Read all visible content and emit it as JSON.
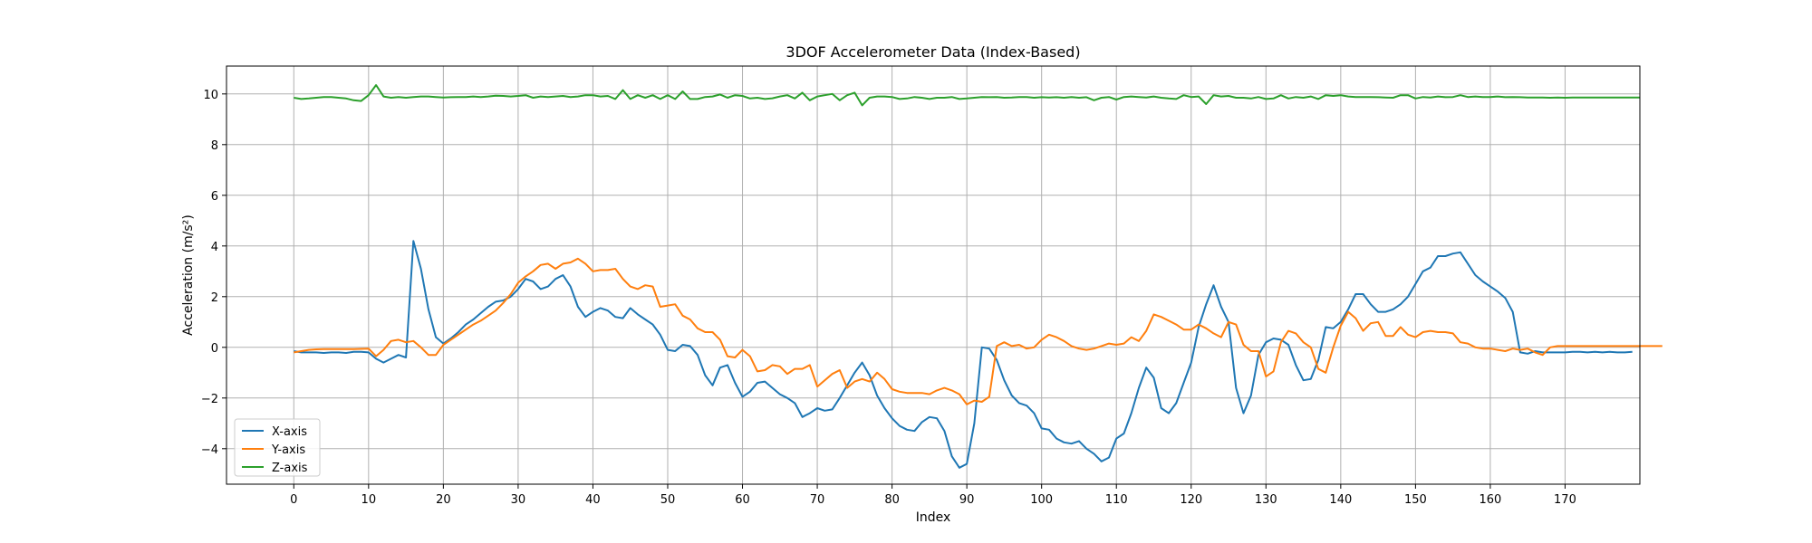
{
  "chart_data": {
    "type": "line",
    "title": "3DOF Accelerometer Data (Index-Based)",
    "xlabel": "Index",
    "ylabel": "Acceleration (m/s²)",
    "xlim": [
      -9,
      180
    ],
    "ylim": [
      -5.4,
      11.1
    ],
    "xticks": [
      0,
      10,
      20,
      30,
      40,
      50,
      60,
      70,
      80,
      90,
      100,
      110,
      120,
      130,
      140,
      150,
      160,
      170
    ],
    "yticks": [
      -4,
      -2,
      0,
      2,
      4,
      6,
      8,
      10
    ],
    "grid": true,
    "legend_position": "lower-left",
    "series": [
      {
        "name": "X-axis",
        "color": "#1f77b4",
        "values": [
          -0.15,
          -0.2,
          -0.2,
          -0.2,
          -0.22,
          -0.2,
          -0.2,
          -0.22,
          -0.18,
          -0.18,
          -0.2,
          -0.45,
          -0.6,
          -0.45,
          -0.3,
          -0.4,
          4.2,
          3.1,
          1.5,
          0.4,
          0.15,
          0.35,
          0.6,
          0.9,
          1.1,
          1.35,
          1.6,
          1.8,
          1.85,
          2.0,
          2.3,
          2.7,
          2.6,
          2.3,
          2.4,
          2.7,
          2.85,
          2.4,
          1.6,
          1.2,
          1.4,
          1.55,
          1.45,
          1.2,
          1.15,
          1.55,
          1.3,
          1.1,
          0.9,
          0.5,
          -0.1,
          -0.15,
          0.1,
          0.05,
          -0.3,
          -1.1,
          -1.5,
          -0.8,
          -0.7,
          -1.4,
          -1.95,
          -1.75,
          -1.4,
          -1.35,
          -1.6,
          -1.85,
          -2.0,
          -2.2,
          -2.75,
          -2.6,
          -2.4,
          -2.5,
          -2.45,
          -2.0,
          -1.5,
          -1.0,
          -0.6,
          -1.1,
          -1.9,
          -2.4,
          -2.8,
          -3.1,
          -3.25,
          -3.3,
          -2.95,
          -2.75,
          -2.8,
          -3.3,
          -4.3,
          -4.75,
          -4.6,
          -3.0,
          0.0,
          -0.05,
          -0.5,
          -1.3,
          -1.9,
          -2.2,
          -2.3,
          -2.6,
          -3.2,
          -3.25,
          -3.6,
          -3.75,
          -3.8,
          -3.7,
          -4.0,
          -4.2,
          -4.5,
          -4.35,
          -3.6,
          -3.4,
          -2.6,
          -1.6,
          -0.8,
          -1.2,
          -2.4,
          -2.6,
          -2.2,
          -1.4,
          -0.6,
          0.8,
          1.7,
          2.45,
          1.6,
          1.0,
          -1.6,
          -2.6,
          -1.9,
          -0.3,
          0.2,
          0.35,
          0.3,
          0.1,
          -0.7,
          -1.3,
          -1.25,
          -0.5,
          0.8,
          0.75,
          1.0,
          1.5,
          2.1,
          2.1,
          1.7,
          1.4,
          1.4,
          1.5,
          1.7,
          2.0,
          2.5,
          3.0,
          3.15,
          3.6,
          3.6,
          3.7,
          3.75,
          3.3,
          2.85,
          2.6,
          2.4,
          2.2,
          1.95,
          1.4,
          -0.2,
          -0.25,
          -0.15,
          -0.2,
          -0.2,
          -0.2,
          -0.2,
          -0.18,
          -0.18,
          -0.2,
          -0.18,
          -0.2,
          -0.18,
          -0.2,
          -0.2,
          -0.18
        ]
      },
      {
        "name": "Y-axis",
        "color": "#ff7f0e",
        "values": [
          -0.2,
          -0.15,
          -0.1,
          -0.08,
          -0.07,
          -0.07,
          -0.07,
          -0.07,
          -0.07,
          -0.06,
          -0.05,
          -0.35,
          -0.1,
          0.25,
          0.3,
          0.2,
          0.25,
          0.0,
          -0.3,
          -0.3,
          0.1,
          0.3,
          0.5,
          0.7,
          0.9,
          1.05,
          1.25,
          1.45,
          1.75,
          2.1,
          2.55,
          2.8,
          3.0,
          3.25,
          3.3,
          3.1,
          3.3,
          3.35,
          3.5,
          3.3,
          3.0,
          3.05,
          3.05,
          3.1,
          2.7,
          2.4,
          2.3,
          2.45,
          2.4,
          1.6,
          1.65,
          1.7,
          1.25,
          1.1,
          0.75,
          0.6,
          0.6,
          0.3,
          -0.35,
          -0.4,
          -0.1,
          -0.35,
          -0.95,
          -0.9,
          -0.7,
          -0.75,
          -1.05,
          -0.85,
          -0.85,
          -0.7,
          -1.55,
          -1.3,
          -1.05,
          -0.9,
          -1.6,
          -1.35,
          -1.25,
          -1.35,
          -1.0,
          -1.25,
          -1.65,
          -1.75,
          -1.8,
          -1.8,
          -1.8,
          -1.85,
          -1.7,
          -1.6,
          -1.7,
          -1.85,
          -2.25,
          -2.1,
          -2.15,
          -1.95,
          0.05,
          0.2,
          0.05,
          0.1,
          -0.05,
          0.0,
          0.3,
          0.5,
          0.4,
          0.25,
          0.05,
          -0.05,
          -0.1,
          -0.05,
          0.05,
          0.15,
          0.1,
          0.15,
          0.4,
          0.25,
          0.65,
          1.3,
          1.2,
          1.05,
          0.9,
          0.7,
          0.7,
          0.9,
          0.75,
          0.55,
          0.4,
          1.0,
          0.9,
          0.1,
          -0.15,
          -0.15,
          -1.15,
          -0.95,
          0.2,
          0.65,
          0.55,
          0.2,
          0.0,
          -0.85,
          -1.0,
          0.0,
          0.85,
          1.4,
          1.15,
          0.65,
          0.95,
          1.0,
          0.45,
          0.45,
          0.8,
          0.5,
          0.4,
          0.6,
          0.65,
          0.6,
          0.6,
          0.55,
          0.2,
          0.15,
          0.0,
          -0.05,
          -0.05,
          -0.1,
          -0.15,
          -0.05,
          -0.1,
          -0.05,
          -0.2,
          -0.3,
          0.0,
          0.05,
          0.05,
          0.05,
          0.05,
          0.05,
          0.05,
          0.05,
          0.05,
          0.05,
          0.05,
          0.05,
          0.05,
          0.05,
          0.05,
          0.05
        ]
      },
      {
        "name": "Z-axis",
        "color": "#2ca02c",
        "values": [
          9.85,
          9.8,
          9.82,
          9.85,
          9.88,
          9.88,
          9.85,
          9.82,
          9.75,
          9.72,
          9.95,
          10.35,
          9.9,
          9.85,
          9.88,
          9.85,
          9.88,
          9.9,
          9.9,
          9.88,
          9.86,
          9.87,
          9.88,
          9.88,
          9.9,
          9.88,
          9.9,
          9.93,
          9.92,
          9.9,
          9.92,
          9.95,
          9.85,
          9.9,
          9.88,
          9.9,
          9.92,
          9.88,
          9.9,
          9.95,
          9.95,
          9.9,
          9.92,
          9.8,
          10.15,
          9.8,
          9.95,
          9.85,
          9.95,
          9.8,
          9.95,
          9.8,
          10.1,
          9.8,
          9.8,
          9.88,
          9.9,
          9.98,
          9.85,
          9.95,
          9.92,
          9.82,
          9.85,
          9.8,
          9.83,
          9.9,
          9.95,
          9.82,
          10.05,
          9.75,
          9.9,
          9.95,
          10.0,
          9.75,
          9.95,
          10.05,
          9.55,
          9.85,
          9.9,
          9.9,
          9.88,
          9.8,
          9.82,
          9.88,
          9.85,
          9.8,
          9.85,
          9.85,
          9.88,
          9.8,
          9.82,
          9.85,
          9.88,
          9.87,
          9.88,
          9.85,
          9.86,
          9.88,
          9.88,
          9.85,
          9.87,
          9.86,
          9.87,
          9.85,
          9.88,
          9.85,
          9.87,
          9.75,
          9.85,
          9.88,
          9.78,
          9.88,
          9.9,
          9.88,
          9.86,
          9.9,
          9.85,
          9.82,
          9.8,
          9.95,
          9.88,
          9.9,
          9.6,
          9.95,
          9.9,
          9.92,
          9.85,
          9.85,
          9.82,
          9.88,
          9.8,
          9.82,
          9.95,
          9.82,
          9.88,
          9.85,
          9.9,
          9.8,
          9.95,
          9.92,
          9.95,
          9.9,
          9.88,
          9.88,
          9.88,
          9.87,
          9.86,
          9.85,
          9.95,
          9.95,
          9.82,
          9.88,
          9.86,
          9.9,
          9.87,
          9.88,
          9.95,
          9.88,
          9.9,
          9.88,
          9.88,
          9.9,
          9.87,
          9.88,
          9.87,
          9.86,
          9.86,
          9.86,
          9.85,
          9.86,
          9.85,
          9.86,
          9.86,
          9.86,
          9.86,
          9.86,
          9.86,
          9.86,
          9.86,
          9.86,
          9.86
        ]
      }
    ]
  }
}
